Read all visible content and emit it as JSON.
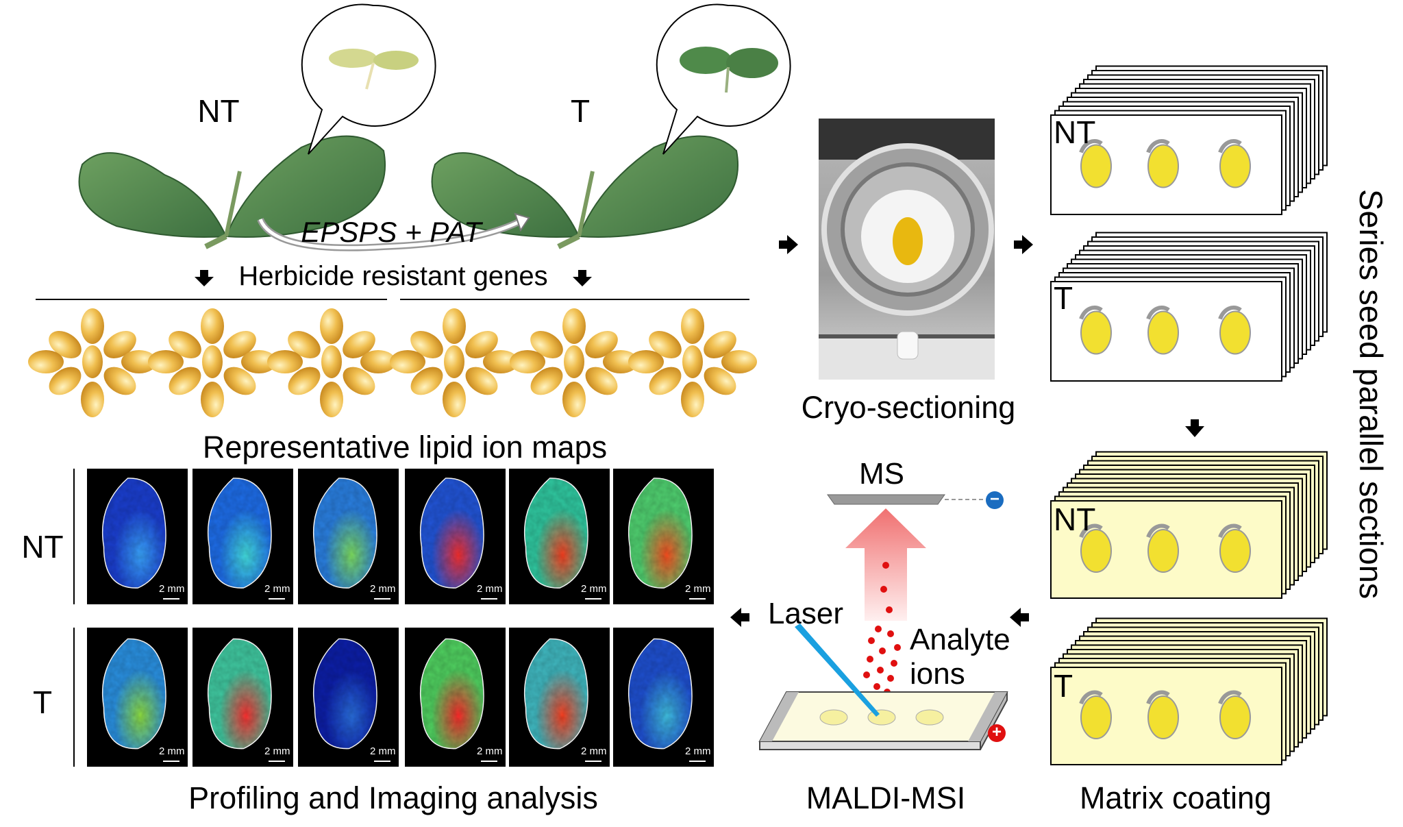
{
  "top": {
    "nt_label": "NT",
    "t_label": "T",
    "transgene_label": "EPSPS + PAT",
    "genes_label": "Herbicide resistant genes"
  },
  "maps": {
    "title": "Representative lipid ion maps",
    "row_labels": [
      "NT",
      "T"
    ],
    "scale_bar": "2 mm",
    "footer": "Profiling and Imaging analysis",
    "nt_panels": [
      {
        "base": "#1b3fd0",
        "hot": "#3aa6ff"
      },
      {
        "base": "#1e6de8",
        "hot": "#44e0e0"
      },
      {
        "base": "#2a7fe0",
        "hot": "#7fe060"
      },
      {
        "base": "#2255d8",
        "hot": "#ff3030"
      },
      {
        "base": "#30c8a0",
        "hot": "#ff4020"
      },
      {
        "base": "#50d070",
        "hot": "#ff5020"
      }
    ],
    "t_panels": [
      {
        "base": "#2a90e0",
        "hot": "#90e040"
      },
      {
        "base": "#40c8a0",
        "hot": "#ff3030"
      },
      {
        "base": "#0d1fa8",
        "hot": "#2a70e0"
      },
      {
        "base": "#50d060",
        "hot": "#ff2a2a"
      },
      {
        "base": "#40b8c0",
        "hot": "#ff4020"
      },
      {
        "base": "#1f50d0",
        "hot": "#40c0e0"
      }
    ]
  },
  "cryo": {
    "label": "Cryo-sectioning"
  },
  "maldi": {
    "label": "MALDI-MSI",
    "ms_label": "MS",
    "laser_label": "Laser",
    "analyte_label_1": "Analyte",
    "analyte_label_2": "ions",
    "minus_sign": "−",
    "plus_sign": "+"
  },
  "sections": {
    "nt_label": "NT",
    "t_label": "T",
    "side_label": "Series seed parallel sections",
    "matrix_label": "Matrix coating"
  },
  "colors": {
    "seed": "#f2e030",
    "matrix_slide": "#fdfbc8",
    "seed_bean": "#e0a838",
    "leaf": "#4f8a4a",
    "laser": "#1aa0e0",
    "ions": "#e01010",
    "minus": "#1a6cc0",
    "plus": "#e01010"
  }
}
